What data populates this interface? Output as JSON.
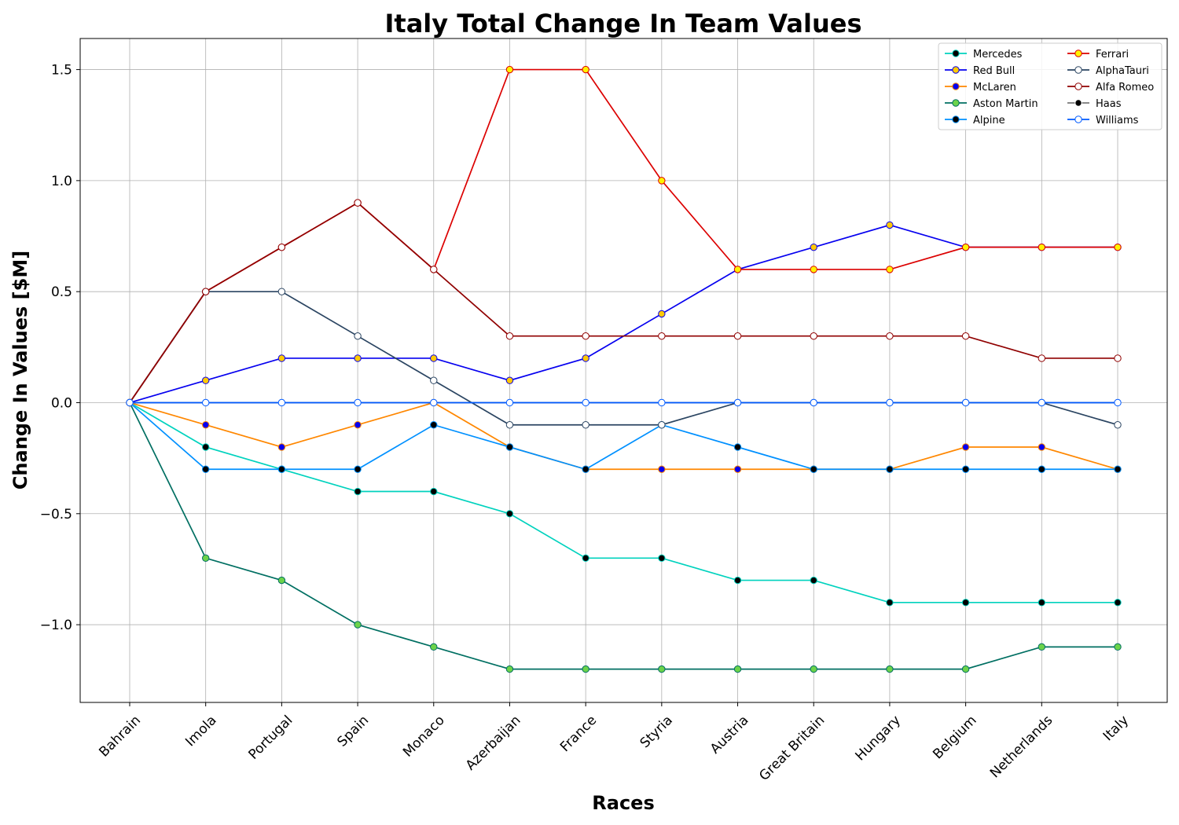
{
  "chart_data": {
    "type": "line",
    "title": "Italy Total Change In Team Values",
    "xlabel": "Races",
    "ylabel": "Change In Values [$M]",
    "categories": [
      "Bahrain",
      "Imola",
      "Portugal",
      "Spain",
      "Monaco",
      "Azerbaijan",
      "France",
      "Styria",
      "Austria",
      "Great Britain",
      "Hungary",
      "Belgium",
      "Netherlands",
      "Italy"
    ],
    "ylim": [
      -1.35,
      1.64
    ],
    "yticks": [
      -1.0,
      -0.5,
      0.0,
      0.5,
      1.0,
      1.5
    ],
    "ytick_labels": [
      "−1.0",
      "−0.5",
      "0.0",
      "0.5",
      "1.0",
      "1.5"
    ],
    "grid": true,
    "legend_position": "top-right",
    "legend_columns": 2,
    "series": [
      {
        "name": "Mercedes",
        "line_color": "#00d2be",
        "marker_fill": "#000000",
        "marker_edge": "#00d2be",
        "values": [
          0,
          -0.2,
          -0.3,
          -0.4,
          -0.4,
          -0.5,
          -0.7,
          -0.7,
          -0.8,
          -0.8,
          -0.9,
          -0.9,
          -0.9,
          -0.9
        ]
      },
      {
        "name": "Red Bull",
        "line_color": "#0600ef",
        "marker_fill": "#ffc906",
        "marker_edge": "#0600ef",
        "values": [
          0,
          0.1,
          0.2,
          0.2,
          0.2,
          0.1,
          0.2,
          0.4,
          0.6,
          0.7,
          0.8,
          0.7,
          0.7,
          0.7
        ]
      },
      {
        "name": "McLaren",
        "line_color": "#ff8700",
        "marker_fill": "#0600ef",
        "marker_edge": "#ff8700",
        "values": [
          0,
          -0.1,
          -0.2,
          -0.1,
          0.0,
          -0.2,
          -0.3,
          -0.3,
          -0.3,
          -0.3,
          -0.3,
          -0.2,
          -0.2,
          -0.3
        ]
      },
      {
        "name": "Aston Martin",
        "line_color": "#006f62",
        "marker_fill": "#6cd34a",
        "marker_edge": "#006f62",
        "values": [
          0,
          -0.7,
          -0.8,
          -1.0,
          -1.1,
          -1.2,
          -1.2,
          -1.2,
          -1.2,
          -1.2,
          -1.2,
          -1.2,
          -1.1,
          -1.1
        ]
      },
      {
        "name": "Alpine",
        "line_color": "#0090ff",
        "marker_fill": "#000000",
        "marker_edge": "#0090ff",
        "values": [
          0,
          -0.3,
          -0.3,
          -0.3,
          -0.1,
          -0.2,
          -0.3,
          -0.1,
          -0.2,
          -0.3,
          -0.3,
          -0.3,
          -0.3,
          -0.3
        ]
      },
      {
        "name": "Ferrari",
        "line_color": "#dc0000",
        "marker_fill": "#fff200",
        "marker_edge": "#dc0000",
        "values": [
          0,
          0.5,
          0.7,
          0.9,
          0.6,
          1.5,
          1.5,
          1.0,
          0.6,
          0.6,
          0.6,
          0.7,
          0.7,
          0.7
        ]
      },
      {
        "name": "AlphaTauri",
        "line_color": "#2b4562",
        "marker_fill": "#ffffff",
        "marker_edge": "#2b4562",
        "values": [
          0,
          0.5,
          0.5,
          0.3,
          0.1,
          -0.1,
          -0.1,
          -0.1,
          0.0,
          0.0,
          0.0,
          0.0,
          0.0,
          -0.1
        ]
      },
      {
        "name": "Alfa Romeo",
        "line_color": "#900000",
        "marker_fill": "#ffffff",
        "marker_edge": "#900000",
        "values": [
          0,
          0.5,
          0.7,
          0.9,
          0.6,
          0.3,
          0.3,
          0.3,
          0.3,
          0.3,
          0.3,
          0.3,
          0.2,
          0.2
        ]
      },
      {
        "name": "Haas",
        "line_color": "#787878",
        "marker_fill": "#000000",
        "marker_edge": "#ffffff",
        "values": [
          0,
          0.0,
          0.0,
          0.0,
          0.0,
          0.0,
          0.0,
          0.0,
          0.0,
          0.0,
          0.0,
          0.0,
          0.0,
          0.0
        ]
      },
      {
        "name": "Williams",
        "line_color": "#005aff",
        "marker_fill": "#ffffff",
        "marker_edge": "#005aff",
        "values": [
          0,
          0.0,
          0.0,
          0.0,
          0.0,
          0.0,
          0.0,
          0.0,
          0.0,
          0.0,
          0.0,
          0.0,
          0.0,
          0.0
        ]
      }
    ]
  }
}
